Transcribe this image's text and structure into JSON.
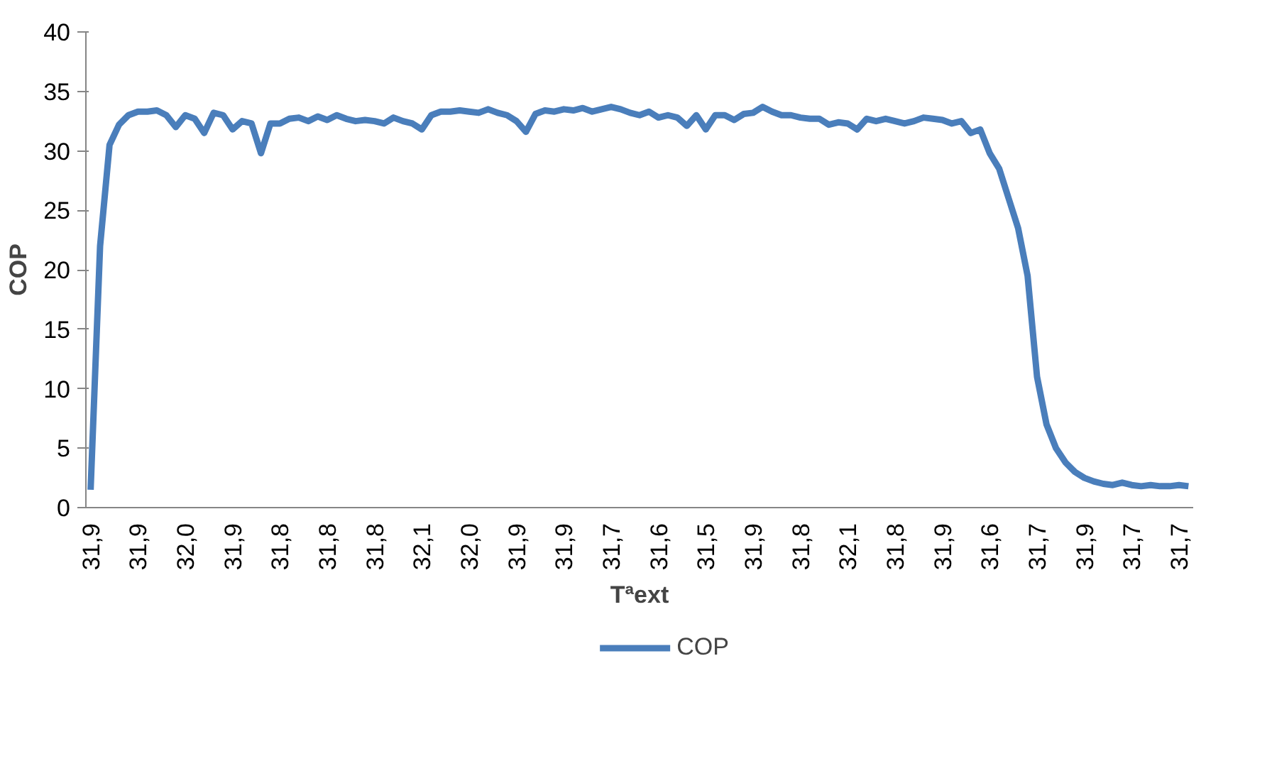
{
  "chart_data": {
    "type": "line",
    "xlabel": "Tªext",
    "ylabel": "COP",
    "ylim": [
      0,
      40
    ],
    "yticks": [
      0,
      5,
      10,
      15,
      20,
      25,
      30,
      35,
      40
    ],
    "grid": false,
    "legend": "bottom",
    "marker": "none",
    "line_style": "solid",
    "categories": [
      "31,9",
      null,
      null,
      null,
      null,
      "31,9",
      null,
      null,
      null,
      null,
      "32,0",
      null,
      null,
      null,
      null,
      "31,9",
      null,
      null,
      null,
      null,
      "31,8",
      null,
      null,
      null,
      null,
      "31,8",
      null,
      null,
      null,
      null,
      "31,8",
      null,
      null,
      null,
      null,
      "32,1",
      null,
      null,
      null,
      null,
      "32,0",
      null,
      null,
      null,
      null,
      "31,9",
      null,
      null,
      null,
      null,
      "31,9",
      null,
      null,
      null,
      null,
      "31,7",
      null,
      null,
      null,
      null,
      "31,6",
      null,
      null,
      null,
      null,
      "31,5",
      null,
      null,
      null,
      null,
      "31,9",
      null,
      null,
      null,
      null,
      "31,8",
      null,
      null,
      null,
      null,
      "32,1",
      null,
      null,
      null,
      null,
      "31,8",
      null,
      null,
      null,
      null,
      "31,9",
      null,
      null,
      null,
      null,
      "31,6",
      null,
      null,
      null,
      null,
      "31,7",
      null,
      null,
      null,
      null,
      "31,9",
      null,
      null,
      null,
      null,
      "31,7",
      null,
      null,
      null,
      null,
      "31,7",
      null
    ],
    "series": [
      {
        "name": "COP",
        "color": "#4a7ebb",
        "values": [
          1.5,
          22,
          30.5,
          32.2,
          33,
          33.3,
          33.3,
          33.4,
          33,
          32,
          33,
          32.7,
          31.5,
          33.2,
          33,
          31.8,
          32.5,
          32.3,
          29.8,
          32.3,
          32.3,
          32.7,
          32.8,
          32.5,
          32.9,
          32.6,
          33,
          32.7,
          32.5,
          32.6,
          32.5,
          32.3,
          32.8,
          32.5,
          32.3,
          31.8,
          33,
          33.3,
          33.3,
          33.4,
          33.3,
          33.2,
          33.5,
          33.2,
          33,
          32.5,
          31.6,
          33.1,
          33.4,
          33.3,
          33.5,
          33.4,
          33.6,
          33.3,
          33.5,
          33.7,
          33.5,
          33.2,
          33,
          33.3,
          32.8,
          33,
          32.8,
          32.1,
          33,
          31.8,
          33,
          33,
          32.6,
          33.1,
          33.2,
          33.7,
          33.3,
          33,
          33,
          32.8,
          32.7,
          32.7,
          32.2,
          32.4,
          32.3,
          31.8,
          32.7,
          32.5,
          32.7,
          32.5,
          32.3,
          32.5,
          32.8,
          32.7,
          32.6,
          32.3,
          32.5,
          31.5,
          31.8,
          29.8,
          28.5,
          26,
          23.5,
          19.5,
          11,
          7,
          5,
          3.8,
          3,
          2.5,
          2.2,
          2,
          1.9,
          2.1,
          1.9,
          1.8,
          1.9,
          1.8,
          1.8,
          1.9,
          1.8
        ]
      }
    ]
  }
}
